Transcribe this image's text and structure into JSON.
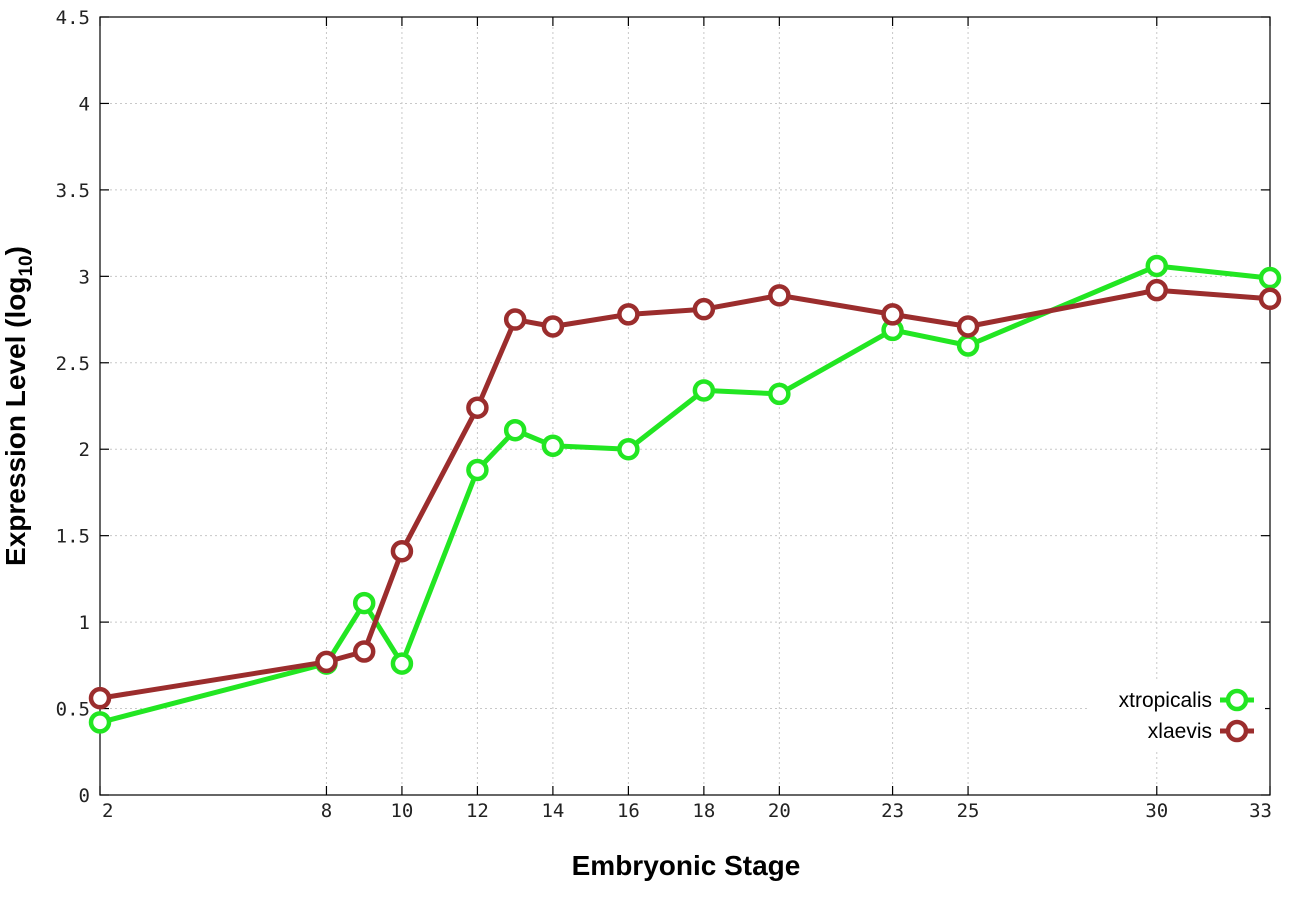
{
  "chart_data": {
    "type": "line",
    "xlabel": "Embryonic Stage",
    "ylabel_main": "Expression Level (log",
    "ylabel_sub": "10",
    "ylabel_close": ")",
    "xlim": [
      2,
      33
    ],
    "ylim": [
      0,
      4.5
    ],
    "x_ticks": [
      2,
      8,
      10,
      12,
      14,
      16,
      18,
      20,
      23,
      25,
      30,
      33
    ],
    "y_ticks": [
      0,
      0.5,
      1,
      1.5,
      2,
      2.5,
      3,
      3.5,
      4,
      4.5
    ],
    "x_tick_labels": [
      "2",
      "8",
      "10",
      "12",
      "14",
      "16",
      "18",
      "20",
      "23",
      "25",
      "30",
      "33"
    ],
    "y_tick_labels": [
      "0",
      "0.5",
      "1",
      "1.5",
      "2",
      "2.5",
      "3",
      "3.5",
      "4",
      "4.5"
    ],
    "grid": true,
    "legend_position": "bottom-right",
    "series": [
      {
        "name": "xtropicalis",
        "color": "#22e622",
        "points": [
          [
            2,
            0.42
          ],
          [
            8,
            0.76
          ],
          [
            9,
            1.11
          ],
          [
            10,
            0.76
          ],
          [
            12,
            1.88
          ],
          [
            13,
            2.11
          ],
          [
            14,
            2.02
          ],
          [
            16,
            2.0
          ],
          [
            18,
            2.34
          ],
          [
            20,
            2.32
          ],
          [
            23,
            2.69
          ],
          [
            25,
            2.6
          ],
          [
            30,
            3.06
          ],
          [
            33,
            2.99
          ]
        ]
      },
      {
        "name": "xlaevis",
        "color": "#9b2d2d",
        "points": [
          [
            2,
            0.56
          ],
          [
            8,
            0.77
          ],
          [
            9,
            0.83
          ],
          [
            10,
            1.41
          ],
          [
            12,
            2.24
          ],
          [
            13,
            2.75
          ],
          [
            14,
            2.71
          ],
          [
            16,
            2.78
          ],
          [
            18,
            2.81
          ],
          [
            20,
            2.89
          ],
          [
            23,
            2.78
          ],
          [
            25,
            2.71
          ],
          [
            30,
            2.92
          ],
          [
            33,
            2.87
          ]
        ]
      }
    ]
  }
}
